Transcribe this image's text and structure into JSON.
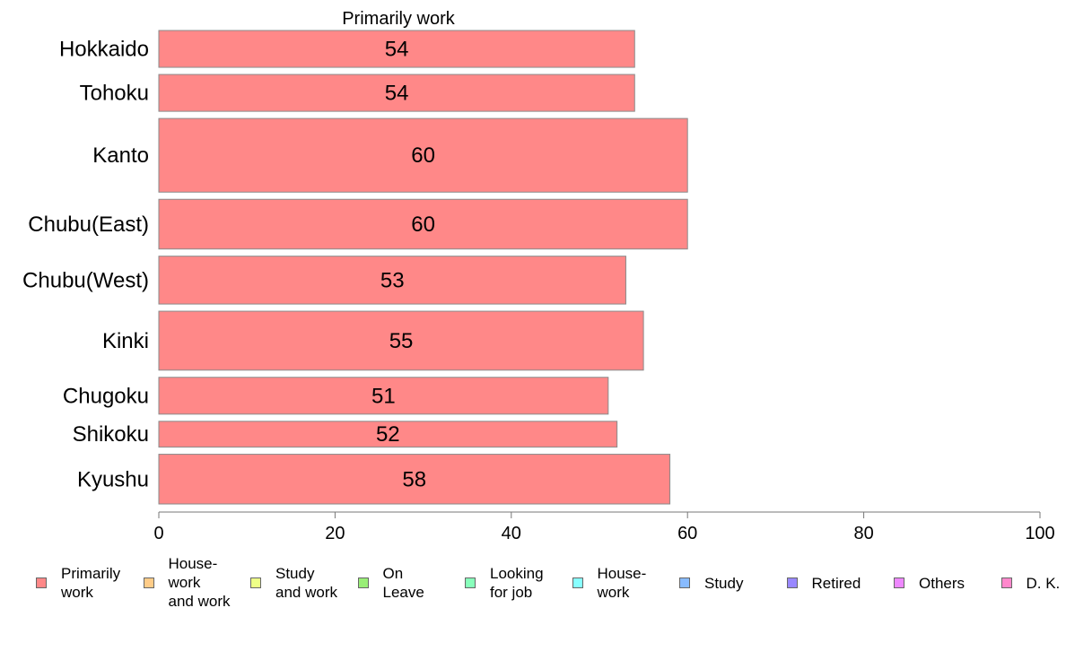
{
  "chart_data": {
    "type": "bar",
    "orientation": "horizontal",
    "title": "Primarily work",
    "categories": [
      "Hokkaido",
      "Tohoku",
      "Kanto",
      "Chubu(East)",
      "Chubu(West)",
      "Kinki",
      "Chugoku",
      "Shikoku",
      "Kyushu"
    ],
    "series": [
      {
        "name": "Primarily work",
        "color": "#ff8888",
        "values": [
          54,
          54,
          60,
          60,
          53,
          55,
          51,
          52,
          58
        ]
      }
    ],
    "value_labels": [
      "54",
      "54",
      "60",
      "60",
      "53",
      "55",
      "51",
      "52",
      "58"
    ],
    "band_weights": [
      1,
      1,
      2,
      1.35,
      1.3,
      1.6,
      1,
      0.7,
      1.35
    ],
    "xlim": [
      0,
      100
    ],
    "xticks": [
      "0",
      "20",
      "40",
      "60",
      "80",
      "100"
    ],
    "xlabel": "",
    "ylabel": "",
    "grid": false,
    "legend": {
      "placement": "bottom",
      "items": [
        {
          "label": "Primarily\nwork",
          "color": "#ff8888"
        },
        {
          "label": "House-\nwork\nand work",
          "color": "#ffcc88"
        },
        {
          "label": "Study\nand work",
          "color": "#eeff88"
        },
        {
          "label": "On\nLeave",
          "color": "#99ee77"
        },
        {
          "label": "Looking\nfor job",
          "color": "#88ffbb"
        },
        {
          "label": "House-\nwork",
          "color": "#88ffff"
        },
        {
          "label": "Study",
          "color": "#88bbff"
        },
        {
          "label": "Retired",
          "color": "#9988ff"
        },
        {
          "label": "Others",
          "color": "#ee88ff"
        },
        {
          "label": "D. K.",
          "color": "#ff88cc"
        }
      ]
    }
  }
}
